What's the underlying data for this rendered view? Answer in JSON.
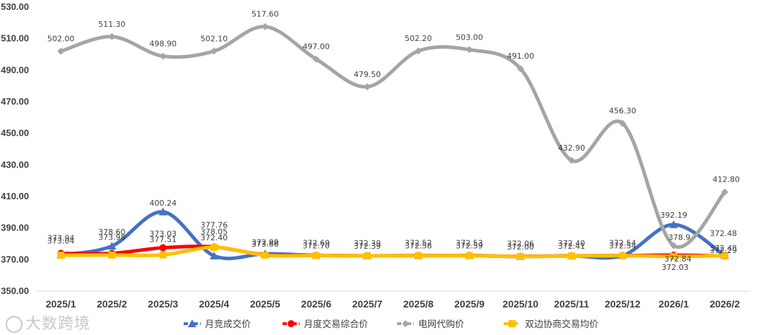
{
  "chart_data": {
    "type": "line",
    "categories": [
      "2025/1",
      "2025/2",
      "2025/3",
      "2025/4",
      "2025/5",
      "2025/6",
      "2025/7",
      "2025/8",
      "2025/9",
      "2025/10",
      "2025/11",
      "2025/12",
      "2026/1",
      "2026/2"
    ],
    "ylim": [
      350,
      530
    ],
    "yticks": [
      "350.00",
      "370.00",
      "390.00",
      "410.00",
      "430.00",
      "450.00",
      "470.00",
      "490.00",
      "510.00",
      "530.00"
    ],
    "grid": false,
    "legend": "bottom",
    "series": [
      {
        "name": "月竞成交价",
        "color": "#4472C4",
        "marker": "triangle",
        "style": "dash-dot",
        "values": [
          373.04,
          378.6,
          400.24,
          372.4,
          373.66,
          372.7,
          372.39,
          372.58,
          372.59,
          372.0,
          372.41,
          372.54,
          392.19,
          372.48
        ],
        "labels": [
          "373.04",
          "378.60",
          "400.24",
          "372.40",
          "373.66",
          "372.70",
          "372.39",
          "372.58",
          "372.59",
          "372.00",
          "372.41",
          "372.54",
          "392.19",
          "372.48"
        ]
      },
      {
        "name": "月度交易综合价",
        "color": "#FF0000",
        "marker": "circle",
        "style": "dot",
        "values": [
          373.94,
          373.98,
          377.51,
          378.05,
          372.99,
          372.69,
          372.39,
          372.52,
          372.53,
          372.06,
          372.4,
          372.54,
          372.84,
          372.29
        ],
        "labels": [
          "373.94",
          "373.98",
          "377.51",
          "378.05",
          "372.99",
          "372.69",
          "372.39",
          "372.52",
          "372.53",
          "372.06",
          "372.40",
          "372.54",
          "372.84",
          "372.29"
        ]
      },
      {
        "name": "电网代购价",
        "color": "#A5A5A5",
        "marker": "diamond",
        "style": "dash-dot",
        "values": [
          502.0,
          511.3,
          498.9,
          502.1,
          517.6,
          497.0,
          479.5,
          502.2,
          503.0,
          491.0,
          432.9,
          456.3,
          378.9,
          412.8
        ],
        "labels": [
          "502.00",
          "511.30",
          "498.90",
          "502.10",
          "517.60",
          "497.00",
          "479.50",
          "502.20",
          "503.00",
          "491.00",
          "432.90",
          "456.30",
          "378.9",
          "412.80"
        ]
      },
      {
        "name": "双边协商交易均价",
        "color": "#FFC000",
        "marker": "square",
        "style": "dash",
        "values": [
          372.8,
          372.9,
          373.03,
          377.76,
          372.8,
          372.6,
          372.39,
          372.5,
          372.5,
          372.0,
          372.3,
          372.5,
          372.03,
          372.48
        ],
        "labels": [
          "",
          "",
          "373.03",
          "377.76",
          "",
          "",
          "",
          "",
          "",
          "",
          "",
          "",
          "372.03",
          "372.48"
        ]
      }
    ]
  },
  "watermark": "大数跨境"
}
